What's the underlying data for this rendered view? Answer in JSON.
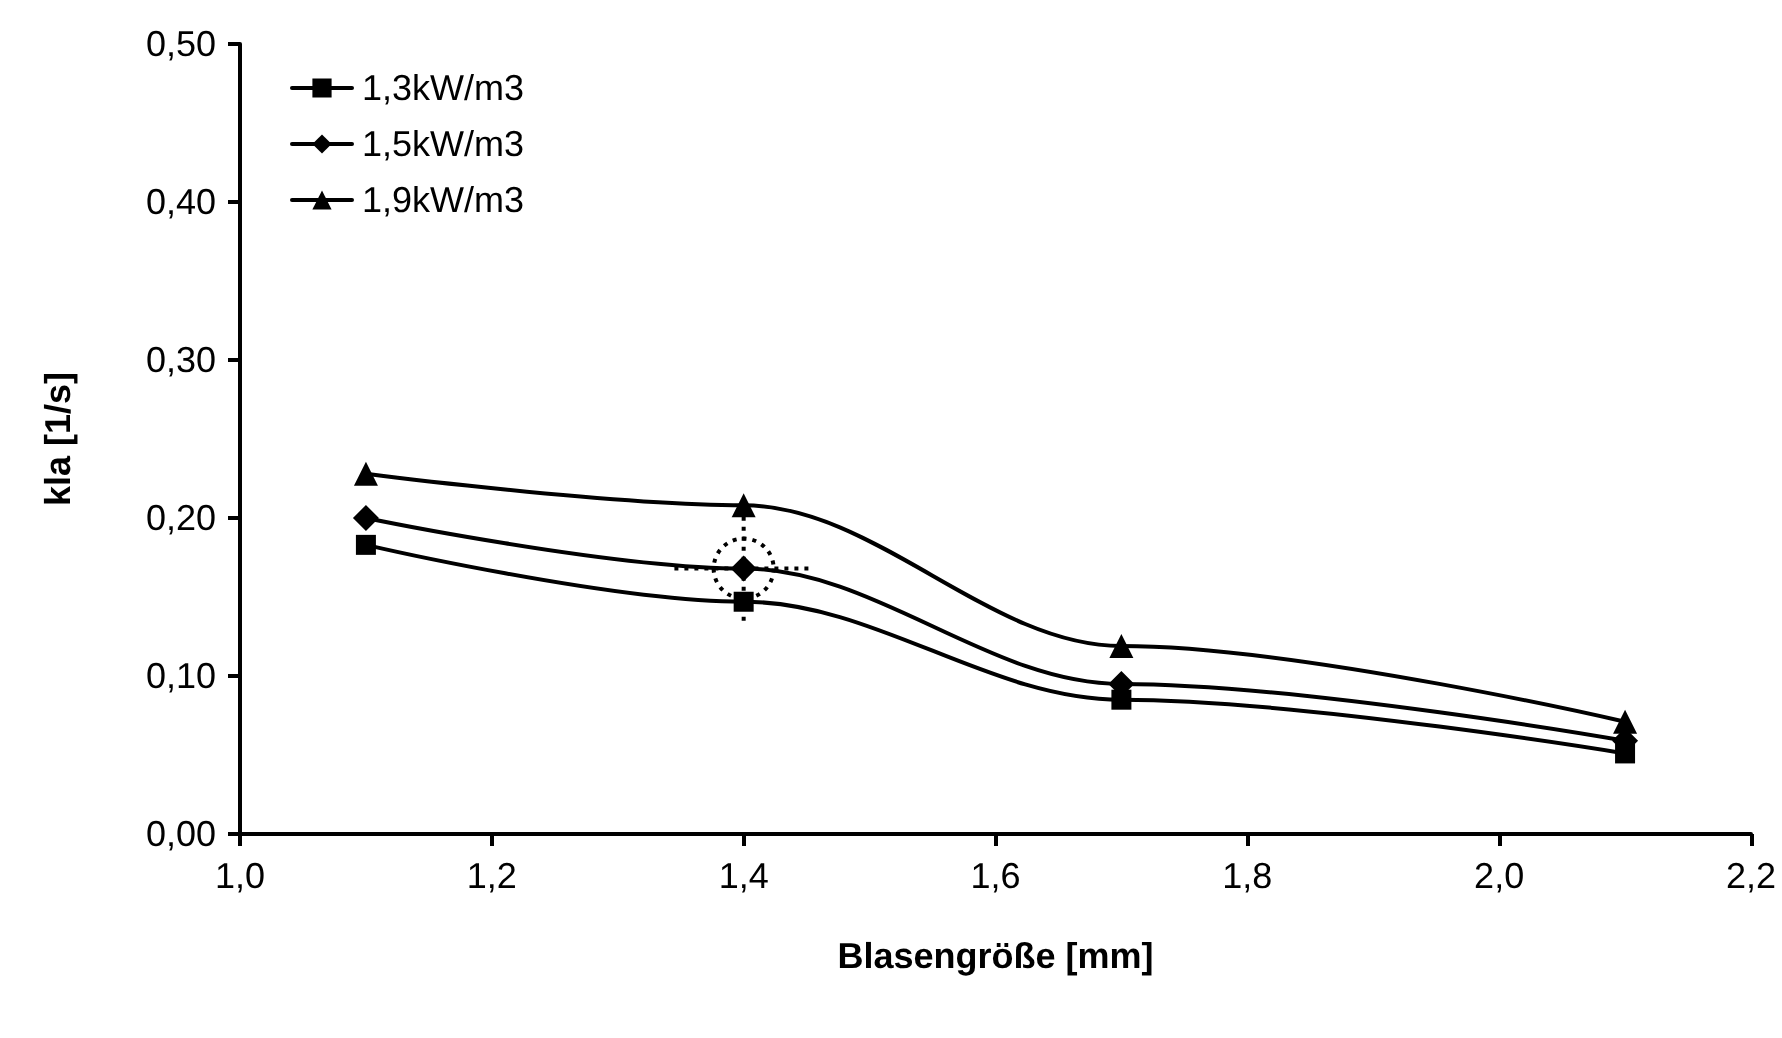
{
  "chart_data": {
    "type": "line",
    "xlabel": "Blasengröße [mm]",
    "ylabel": "kla [1/s]",
    "x": [
      1.1,
      1.4,
      1.7,
      2.1
    ],
    "series": [
      {
        "name": "1,3kW/m3",
        "color": "#000000",
        "marker": "square",
        "values": [
          0.183,
          0.147,
          0.085,
          0.051
        ]
      },
      {
        "name": "1,5kW/m3",
        "color": "#000000",
        "marker": "diamond",
        "values": [
          0.2,
          0.168,
          0.095,
          0.059
        ],
        "errors": [
          null,
          0.033,
          null,
          null
        ],
        "xerrors": [
          null,
          0.055,
          null,
          null
        ]
      },
      {
        "name": "1,9kW/m3",
        "color": "#000000",
        "marker": "triangle",
        "values": [
          0.228,
          0.208,
          0.119,
          0.071
        ]
      }
    ],
    "xlim": [
      1.0,
      2.2
    ],
    "xticks": [
      {
        "value": 1.0,
        "label": "1,0"
      },
      {
        "value": 1.2,
        "label": "1,2"
      },
      {
        "value": 1.4,
        "label": "1,4"
      },
      {
        "value": 1.6,
        "label": "1,6"
      },
      {
        "value": 1.8,
        "label": "1,8"
      },
      {
        "value": 2.0,
        "label": "2,0"
      },
      {
        "value": 2.2,
        "label": "2,2"
      }
    ],
    "ylim": [
      0,
      0.5
    ],
    "yticks": [
      {
        "value": 0,
        "label": "0,00"
      },
      {
        "value": 0.1,
        "label": "0,10"
      },
      {
        "value": 0.2,
        "label": "0,20"
      },
      {
        "value": 0.3,
        "label": "0,30"
      },
      {
        "value": 0.4,
        "label": "0,40"
      },
      {
        "value": 0.5,
        "label": "0,50"
      }
    ],
    "grid": false,
    "legend": "top left",
    "line_style": "solid"
  }
}
